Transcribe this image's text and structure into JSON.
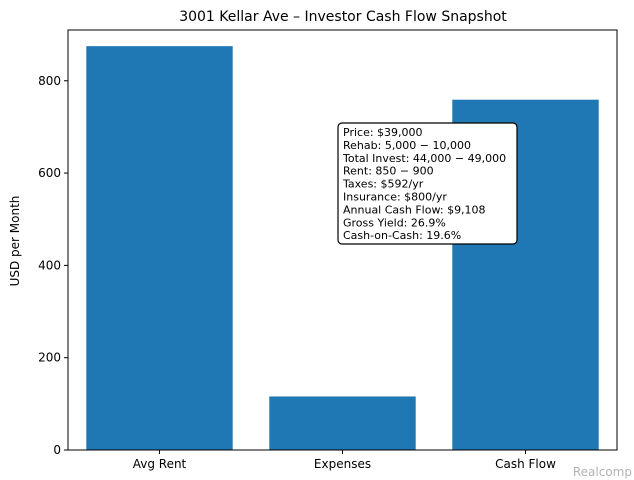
{
  "chart_data": {
    "type": "bar",
    "title": "3001 Kellar Ave – Investor Cash Flow Snapshot",
    "xlabel": "",
    "ylabel": "USD per Month",
    "categories": [
      "Avg Rent",
      "Expenses",
      "Cash Flow"
    ],
    "values": [
      875,
      116,
      759
    ],
    "ylim": [
      0,
      910
    ],
    "yticks": [
      0,
      200,
      400,
      600,
      800
    ],
    "bar_color": "#1f77b4",
    "grid": false,
    "annotation_lines": [
      "Price: $39,000",
      "Rehab: 5,000 − 10,000",
      "Total Invest: 44,000 − 49,000",
      "Rent: 850 − 900",
      "Taxes: $592/yr",
      "Insurance: $800/yr",
      "Annual Cash Flow: $9,108",
      "Gross Yield: 26.9%",
      "Cash-on-Cash: 19.6%"
    ]
  },
  "watermark": "Realcomp"
}
